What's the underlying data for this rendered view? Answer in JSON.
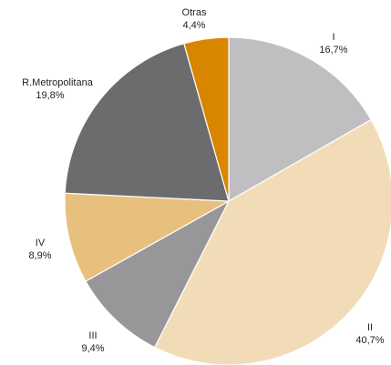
{
  "chart_data": {
    "type": "pie",
    "start_angle_deg": 0,
    "direction": "clockwise",
    "slices": [
      {
        "label": "I",
        "value_text": "16,7%",
        "value": 16.7,
        "color": "#bfbfc1"
      },
      {
        "label": "II",
        "value_text": "40,7%",
        "value": 40.7,
        "color": "#f2dcb8"
      },
      {
        "label": "III",
        "value_text": "9,4%",
        "value": 9.4,
        "color": "#97979a"
      },
      {
        "label": "IV",
        "value_text": "8,9%",
        "value": 8.9,
        "color": "#e8c07e"
      },
      {
        "label": "R.Metropolitana",
        "value_text": "19,8%",
        "value": 19.8,
        "color": "#6c6c6f"
      },
      {
        "label": "Otras",
        "value_text": "4,4%",
        "value": 4.4,
        "color": "#d88600"
      }
    ]
  }
}
